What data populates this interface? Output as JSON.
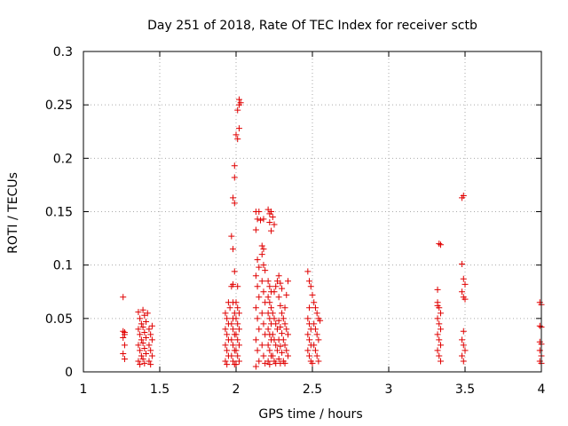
{
  "chart_data": {
    "type": "scatter",
    "title": "Day 251 of 2018, Rate Of TEC Index for receiver sctb",
    "xlabel": "GPS time / hours",
    "ylabel": "ROTI / TECUs",
    "xlim": [
      1,
      4
    ],
    "ylim": [
      0,
      0.3
    ],
    "grid": true,
    "marker": "+",
    "marker_color": "#e00000",
    "x_ticks": [
      1,
      1.5,
      2,
      2.5,
      3,
      3.5,
      4
    ],
    "x_tick_labels": [
      "1",
      "1.5",
      "2",
      "2.5",
      "3",
      "3.5",
      "4"
    ],
    "y_ticks": [
      0,
      0.05,
      0.1,
      0.15,
      0.2,
      0.25,
      0.3
    ],
    "y_tick_labels": [
      "0",
      "0.05",
      "0.1",
      "0.15",
      "0.2",
      "0.25",
      "0.3"
    ],
    "series": [
      {
        "name": "ROTI",
        "points": [
          [
            1.26,
            0.07
          ],
          [
            1.26,
            0.038
          ],
          [
            1.27,
            0.035
          ],
          [
            1.26,
            0.032
          ],
          [
            1.27,
            0.025
          ],
          [
            1.26,
            0.017
          ],
          [
            1.27,
            0.012
          ],
          [
            1.27,
            0.037
          ],
          [
            1.36,
            0.056
          ],
          [
            1.37,
            0.05
          ],
          [
            1.38,
            0.045
          ],
          [
            1.36,
            0.04
          ],
          [
            1.37,
            0.035
          ],
          [
            1.38,
            0.03
          ],
          [
            1.36,
            0.025
          ],
          [
            1.37,
            0.02
          ],
          [
            1.38,
            0.015
          ],
          [
            1.36,
            0.01
          ],
          [
            1.37,
            0.007
          ],
          [
            1.39,
            0.058
          ],
          [
            1.4,
            0.053
          ],
          [
            1.41,
            0.047
          ],
          [
            1.39,
            0.042
          ],
          [
            1.4,
            0.037
          ],
          [
            1.41,
            0.032
          ],
          [
            1.39,
            0.027
          ],
          [
            1.4,
            0.022
          ],
          [
            1.41,
            0.017
          ],
          [
            1.39,
            0.012
          ],
          [
            1.4,
            0.008
          ],
          [
            1.42,
            0.055
          ],
          [
            1.43,
            0.04
          ],
          [
            1.44,
            0.035
          ],
          [
            1.45,
            0.03
          ],
          [
            1.43,
            0.025
          ],
          [
            1.44,
            0.02
          ],
          [
            1.45,
            0.015
          ],
          [
            1.43,
            0.01
          ],
          [
            1.44,
            0.007
          ],
          [
            1.45,
            0.043
          ],
          [
            1.93,
            0.055
          ],
          [
            1.94,
            0.05
          ],
          [
            1.95,
            0.045
          ],
          [
            1.93,
            0.04
          ],
          [
            1.94,
            0.035
          ],
          [
            1.95,
            0.03
          ],
          [
            1.93,
            0.025
          ],
          [
            1.94,
            0.02
          ],
          [
            1.95,
            0.015
          ],
          [
            1.93,
            0.01
          ],
          [
            1.94,
            0.007
          ],
          [
            1.95,
            0.065
          ],
          [
            1.96,
            0.06
          ],
          [
            1.97,
            0.08
          ],
          [
            1.98,
            0.082
          ],
          [
            1.97,
            0.127
          ],
          [
            1.98,
            0.115
          ],
          [
            1.99,
            0.094
          ],
          [
            1.98,
            0.065
          ],
          [
            1.99,
            0.055
          ],
          [
            1.98,
            0.05
          ],
          [
            1.97,
            0.045
          ],
          [
            1.98,
            0.04
          ],
          [
            1.99,
            0.035
          ],
          [
            1.97,
            0.03
          ],
          [
            1.98,
            0.025
          ],
          [
            1.99,
            0.02
          ],
          [
            1.97,
            0.015
          ],
          [
            1.98,
            0.01
          ],
          [
            1.99,
            0.007
          ],
          [
            1.98,
            0.163
          ],
          [
            1.99,
            0.158
          ],
          [
            1.99,
            0.182
          ],
          [
            1.99,
            0.193
          ],
          [
            2.0,
            0.222
          ],
          [
            2.01,
            0.218
          ],
          [
            2.01,
            0.245
          ],
          [
            2.02,
            0.25
          ],
          [
            2.02,
            0.255
          ],
          [
            2.02,
            0.228
          ],
          [
            2.03,
            0.252
          ],
          [
            2.0,
            0.065
          ],
          [
            2.01,
            0.06
          ],
          [
            2.02,
            0.055
          ],
          [
            2.0,
            0.05
          ],
          [
            2.01,
            0.045
          ],
          [
            2.02,
            0.04
          ],
          [
            2.0,
            0.035
          ],
          [
            2.01,
            0.03
          ],
          [
            2.02,
            0.025
          ],
          [
            2.0,
            0.02
          ],
          [
            2.01,
            0.015
          ],
          [
            2.02,
            0.01
          ],
          [
            2.0,
            0.007
          ],
          [
            2.01,
            0.08
          ],
          [
            2.13,
            0.15
          ],
          [
            2.14,
            0.143
          ],
          [
            2.13,
            0.133
          ],
          [
            2.15,
            0.15
          ],
          [
            2.16,
            0.142
          ],
          [
            2.14,
            0.105
          ],
          [
            2.15,
            0.098
          ],
          [
            2.13,
            0.09
          ],
          [
            2.14,
            0.08
          ],
          [
            2.15,
            0.07
          ],
          [
            2.13,
            0.06
          ],
          [
            2.14,
            0.05
          ],
          [
            2.15,
            0.04
          ],
          [
            2.13,
            0.03
          ],
          [
            2.14,
            0.02
          ],
          [
            2.15,
            0.01
          ],
          [
            2.13,
            0.005
          ],
          [
            2.17,
            0.118
          ],
          [
            2.18,
            0.115
          ],
          [
            2.17,
            0.11
          ],
          [
            2.18,
            0.1
          ],
          [
            2.19,
            0.095
          ],
          [
            2.17,
            0.085
          ],
          [
            2.18,
            0.075
          ],
          [
            2.19,
            0.065
          ],
          [
            2.17,
            0.055
          ],
          [
            2.18,
            0.045
          ],
          [
            2.19,
            0.035
          ],
          [
            2.17,
            0.025
          ],
          [
            2.18,
            0.015
          ],
          [
            2.19,
            0.008
          ],
          [
            2.18,
            0.143
          ],
          [
            2.21,
            0.152
          ],
          [
            2.22,
            0.148
          ],
          [
            2.23,
            0.15
          ],
          [
            2.22,
            0.14
          ],
          [
            2.23,
            0.132
          ],
          [
            2.24,
            0.145
          ],
          [
            2.25,
            0.138
          ],
          [
            2.21,
            0.085
          ],
          [
            2.22,
            0.08
          ],
          [
            2.23,
            0.075
          ],
          [
            2.21,
            0.07
          ],
          [
            2.22,
            0.065
          ],
          [
            2.23,
            0.06
          ],
          [
            2.21,
            0.055
          ],
          [
            2.22,
            0.05
          ],
          [
            2.23,
            0.045
          ],
          [
            2.21,
            0.04
          ],
          [
            2.22,
            0.035
          ],
          [
            2.23,
            0.03
          ],
          [
            2.21,
            0.025
          ],
          [
            2.22,
            0.02
          ],
          [
            2.23,
            0.015
          ],
          [
            2.21,
            0.01
          ],
          [
            2.22,
            0.007
          ],
          [
            2.24,
            0.055
          ],
          [
            2.25,
            0.05
          ],
          [
            2.26,
            0.045
          ],
          [
            2.27,
            0.04
          ],
          [
            2.24,
            0.035
          ],
          [
            2.25,
            0.03
          ],
          [
            2.26,
            0.025
          ],
          [
            2.27,
            0.02
          ],
          [
            2.24,
            0.015
          ],
          [
            2.25,
            0.01
          ],
          [
            2.26,
            0.008
          ],
          [
            2.27,
            0.085
          ],
          [
            2.26,
            0.08
          ],
          [
            2.25,
            0.075
          ],
          [
            2.28,
            0.09
          ],
          [
            2.29,
            0.083
          ],
          [
            2.3,
            0.078
          ],
          [
            2.28,
            0.07
          ],
          [
            2.29,
            0.062
          ],
          [
            2.3,
            0.055
          ],
          [
            2.28,
            0.048
          ],
          [
            2.29,
            0.042
          ],
          [
            2.3,
            0.036
          ],
          [
            2.28,
            0.03
          ],
          [
            2.29,
            0.024
          ],
          [
            2.3,
            0.018
          ],
          [
            2.28,
            0.012
          ],
          [
            2.29,
            0.008
          ],
          [
            2.31,
            0.05
          ],
          [
            2.32,
            0.045
          ],
          [
            2.33,
            0.04
          ],
          [
            2.34,
            0.035
          ],
          [
            2.31,
            0.03
          ],
          [
            2.32,
            0.025
          ],
          [
            2.33,
            0.02
          ],
          [
            2.34,
            0.015
          ],
          [
            2.31,
            0.01
          ],
          [
            2.32,
            0.008
          ],
          [
            2.33,
            0.072
          ],
          [
            2.34,
            0.085
          ],
          [
            2.32,
            0.06
          ],
          [
            2.47,
            0.094
          ],
          [
            2.48,
            0.085
          ],
          [
            2.49,
            0.08
          ],
          [
            2.5,
            0.072
          ],
          [
            2.48,
            0.06
          ],
          [
            2.47,
            0.05
          ],
          [
            2.48,
            0.045
          ],
          [
            2.49,
            0.04
          ],
          [
            2.47,
            0.035
          ],
          [
            2.48,
            0.03
          ],
          [
            2.49,
            0.025
          ],
          [
            2.47,
            0.02
          ],
          [
            2.48,
            0.015
          ],
          [
            2.49,
            0.01
          ],
          [
            2.5,
            0.008
          ],
          [
            2.51,
            0.065
          ],
          [
            2.52,
            0.06
          ],
          [
            2.53,
            0.055
          ],
          [
            2.54,
            0.05
          ],
          [
            2.51,
            0.045
          ],
          [
            2.52,
            0.04
          ],
          [
            2.53,
            0.035
          ],
          [
            2.54,
            0.03
          ],
          [
            2.51,
            0.025
          ],
          [
            2.52,
            0.02
          ],
          [
            2.53,
            0.015
          ],
          [
            2.54,
            0.01
          ],
          [
            2.55,
            0.048
          ],
          [
            3.32,
            0.077
          ],
          [
            3.33,
            0.12
          ],
          [
            3.34,
            0.119
          ],
          [
            3.32,
            0.065
          ],
          [
            3.33,
            0.06
          ],
          [
            3.34,
            0.055
          ],
          [
            3.32,
            0.05
          ],
          [
            3.33,
            0.045
          ],
          [
            3.34,
            0.04
          ],
          [
            3.32,
            0.035
          ],
          [
            3.33,
            0.03
          ],
          [
            3.34,
            0.025
          ],
          [
            3.32,
            0.02
          ],
          [
            3.33,
            0.015
          ],
          [
            3.34,
            0.01
          ],
          [
            3.32,
            0.062
          ],
          [
            3.48,
            0.163
          ],
          [
            3.49,
            0.165
          ],
          [
            3.48,
            0.101
          ],
          [
            3.49,
            0.087
          ],
          [
            3.5,
            0.082
          ],
          [
            3.48,
            0.075
          ],
          [
            3.49,
            0.07
          ],
          [
            3.5,
            0.068
          ],
          [
            3.49,
            0.038
          ],
          [
            3.48,
            0.03
          ],
          [
            3.49,
            0.025
          ],
          [
            3.5,
            0.02
          ],
          [
            3.48,
            0.015
          ],
          [
            3.49,
            0.01
          ],
          [
            3.99,
            0.065
          ],
          [
            4.0,
            0.063
          ],
          [
            3.99,
            0.043
          ],
          [
            4.0,
            0.042
          ],
          [
            3.99,
            0.028
          ],
          [
            4.0,
            0.026
          ],
          [
            3.99,
            0.02
          ],
          [
            4.0,
            0.015
          ],
          [
            3.99,
            0.01
          ],
          [
            4.0,
            0.008
          ]
        ]
      }
    ]
  }
}
